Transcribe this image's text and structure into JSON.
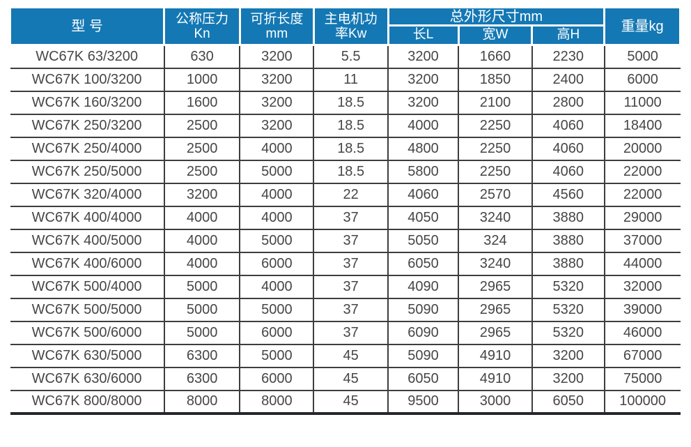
{
  "colors": {
    "header_bg": "#1478b4",
    "header_text": "#ffffff",
    "grid_line": "#3d3d3d",
    "bottom_border": "#24262b",
    "cell_text": "#464646",
    "page_bg": "#ffffff"
  },
  "header": {
    "model": "型 号",
    "pressure": [
      "公称压力",
      "Kn"
    ],
    "length": [
      "可折长度",
      "mm"
    ],
    "power": [
      "主电机功",
      "率Kw"
    ],
    "dimensions": "总外形尺寸mm",
    "dim_sub": [
      "长L",
      "宽W",
      "高H"
    ],
    "weight": "重量kg"
  },
  "chart_data": {
    "type": "table",
    "title": "",
    "columns": [
      "型 号",
      "公称压力 Kn",
      "可折长度 mm",
      "主电机功率Kw",
      "总外形尺寸mm 长L",
      "总外形尺寸mm 宽W",
      "总外形尺寸mm 高H",
      "重量kg"
    ],
    "rows": [
      [
        "WC67K 63/3200",
        "630",
        "3200",
        "5.5",
        "3200",
        "1660",
        "2230",
        "5000"
      ],
      [
        "WC67K 100/3200",
        "1000",
        "3200",
        "11",
        "3200",
        "1850",
        "2400",
        "6000"
      ],
      [
        "WC67K 160/3200",
        "1600",
        "3200",
        "18.5",
        "3200",
        "2100",
        "2800",
        "11000"
      ],
      [
        "WC67K 250/3200",
        "2500",
        "3200",
        "18.5",
        "4000",
        "2250",
        "4060",
        "18400"
      ],
      [
        "WC67K 250/4000",
        "2500",
        "4000",
        "18.5",
        "4800",
        "2250",
        "4060",
        "20000"
      ],
      [
        "WC67K 250/5000",
        "2500",
        "5000",
        "18.5",
        "5800",
        "2250",
        "4060",
        "22000"
      ],
      [
        "WC67K 320/4000",
        "3200",
        "4000",
        "22",
        "4060",
        "2570",
        "4560",
        "22000"
      ],
      [
        "WC67K 400/4000",
        "4000",
        "4000",
        "37",
        "4050",
        "3240",
        "3880",
        "29000"
      ],
      [
        "WC67K 400/5000",
        "4000",
        "5000",
        "37",
        "5050",
        "324",
        "3880",
        "37000"
      ],
      [
        "WC67K 400/6000",
        "4000",
        "6000",
        "37",
        "6050",
        "3240",
        "3880",
        "44000"
      ],
      [
        "WC67K 500/4000",
        "5000",
        "4000",
        "37",
        "4090",
        "2965",
        "5320",
        "32000"
      ],
      [
        "WC67K 500/5000",
        "5000",
        "5000",
        "37",
        "5090",
        "2965",
        "5320",
        "39000"
      ],
      [
        "WC67K 500/6000",
        "5000",
        "6000",
        "37",
        "6090",
        "2965",
        "5320",
        "46000"
      ],
      [
        "WC67K 630/5000",
        "6300",
        "5000",
        "45",
        "5090",
        "4910",
        "3200",
        "67000"
      ],
      [
        "WC67K 630/6000",
        "6300",
        "6000",
        "45",
        "6050",
        "4910",
        "3200",
        "75000"
      ],
      [
        "WC67K 800/8000",
        "8000",
        "8000",
        "45",
        "9500",
        "3000",
        "6050",
        "100000"
      ]
    ]
  }
}
